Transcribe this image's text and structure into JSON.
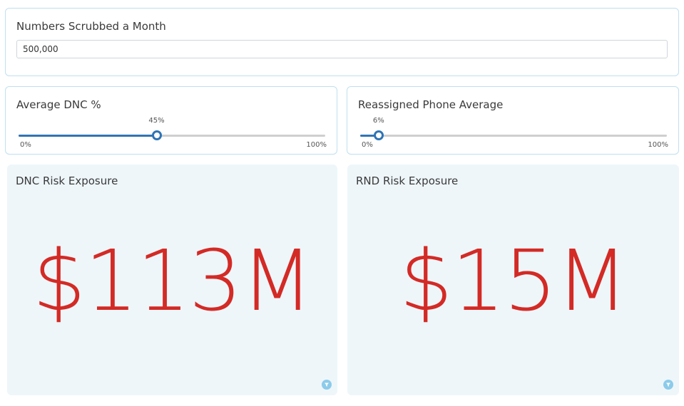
{
  "numbers_card": {
    "title": "Numbers Scrubbed a Month",
    "value": "500,000"
  },
  "dnc_slider": {
    "title": "Average DNC %",
    "value": 45,
    "value_label": "45%",
    "min_label": "0%",
    "max_label": "100%"
  },
  "reassigned_slider": {
    "title": "Reassigned Phone Average",
    "value": 6,
    "value_label": "6%",
    "min_label": "0%",
    "max_label": "100%"
  },
  "dnc_panel": {
    "title": "DNC Risk Exposure",
    "value": "$113M"
  },
  "rnd_panel": {
    "title": "RND Risk Exposure",
    "value": "$15M"
  },
  "colors": {
    "accent": "#2f74b5",
    "risk_value": "#d42a25",
    "panel_bg": "#eef6fa",
    "card_border": "#bfe0ef"
  },
  "icons": {
    "panel_filter": "filter-icon"
  }
}
